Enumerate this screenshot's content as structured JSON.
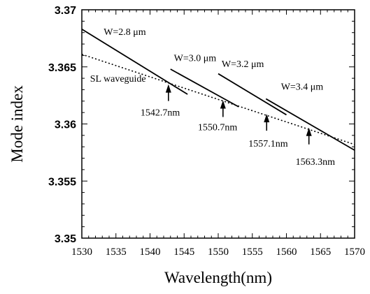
{
  "chart_data": {
    "type": "line",
    "title": "",
    "xlabel": "Wavelength(nm)",
    "ylabel": "Mode index",
    "xlim": [
      1530,
      1570
    ],
    "ylim": [
      3.35,
      3.37
    ],
    "x_ticks": [
      1530,
      1535,
      1540,
      1545,
      1550,
      1555,
      1560,
      1565,
      1570
    ],
    "x_tick_labels": [
      "1530",
      "1535",
      "1540",
      "1545",
      "1550",
      "1555",
      "1560",
      "1565",
      "1570"
    ],
    "y_ticks": [
      3.35,
      3.355,
      3.36,
      3.365,
      3.37
    ],
    "y_tick_labels": [
      "3.35",
      "3.355",
      "3.36",
      "3.365",
      "3.37"
    ],
    "grid": false,
    "series": [
      {
        "name": "SL waveguide",
        "style": "dotted",
        "x": [
          1530,
          1570
        ],
        "y": [
          3.3661,
          3.3582
        ]
      },
      {
        "name": "W=2.8 μm",
        "style": "solid",
        "x": [
          1530,
          1545.5
        ],
        "y": [
          3.3683,
          3.3626
        ]
      },
      {
        "name": "W=3.0 μm",
        "style": "solid",
        "x": [
          1543,
          1553
        ],
        "y": [
          3.3648,
          3.3615
        ]
      },
      {
        "name": "W=3.2 μm",
        "style": "solid",
        "x": [
          1550,
          1560
        ],
        "y": [
          3.3644,
          3.3608
        ]
      },
      {
        "name": "W=3.4 μm",
        "style": "solid",
        "x": [
          1557,
          1570
        ],
        "y": [
          3.3622,
          3.3577
        ]
      }
    ],
    "annotations": [
      {
        "text": "1542.7nm",
        "x": 1542.7,
        "y": 3.3636
      },
      {
        "text": "1550.7nm",
        "x": 1550.7,
        "y": 3.3622
      },
      {
        "text": "1557.1nm",
        "x": 1557.1,
        "y": 3.361
      },
      {
        "text": "1563.3nm",
        "x": 1563.3,
        "y": 3.3598
      }
    ]
  }
}
